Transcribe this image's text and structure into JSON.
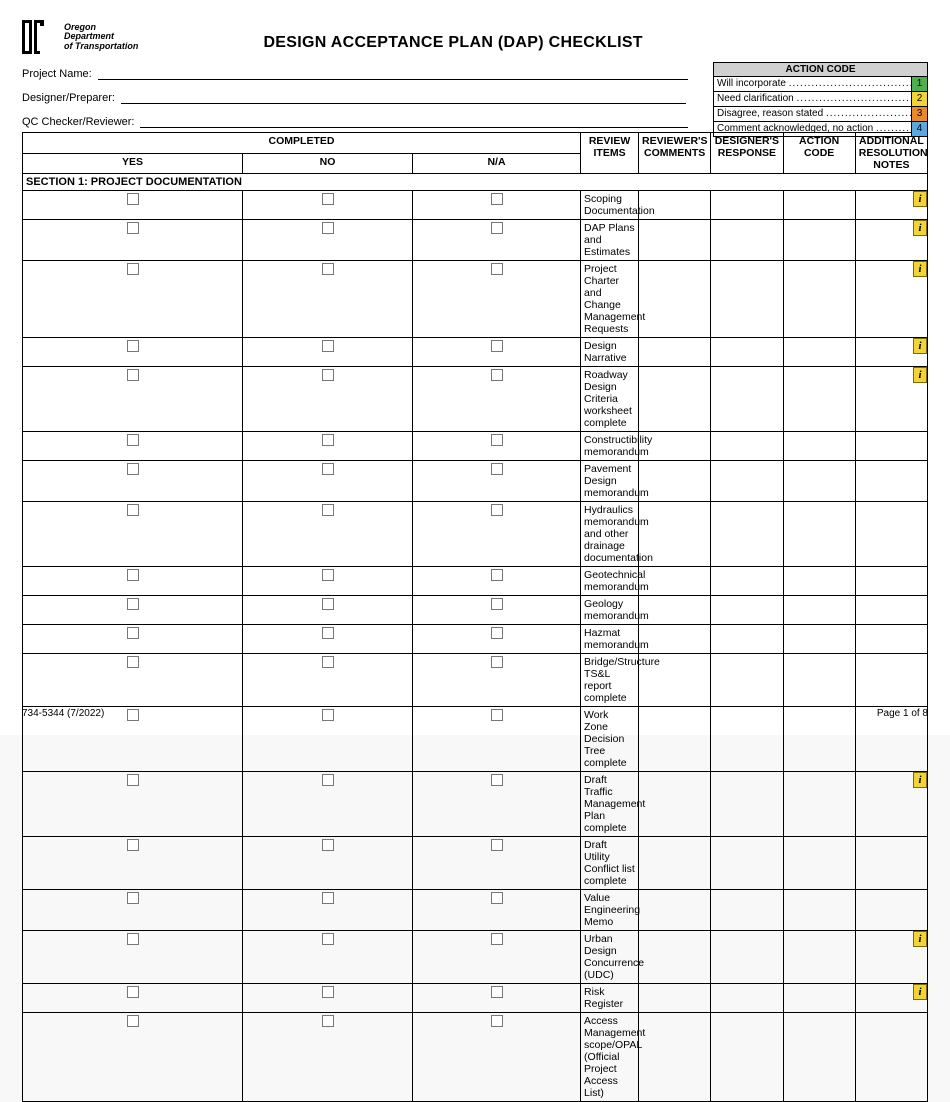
{
  "org": {
    "line1": "Oregon",
    "line2": "Department",
    "line3": "of Transportation"
  },
  "title": "DESIGN ACCEPTANCE PLAN (DAP) CHECKLIST",
  "meta": {
    "project_label": "Project Name:",
    "designer_label": "Designer/Preparer:",
    "qc_label": "QC Checker/Reviewer:"
  },
  "action_code": {
    "title": "ACTION CODE",
    "rows": [
      {
        "label": "Will incorporate",
        "num": "1",
        "color": "#4fae4f"
      },
      {
        "label": "Need clarification",
        "num": "2",
        "color": "#f3d335"
      },
      {
        "label": "Disagree, reason stated",
        "num": "3",
        "color": "#e88a2a"
      },
      {
        "label": "Comment acknowledged, no action",
        "num": "4",
        "color": "#5aa8e0"
      }
    ]
  },
  "headers": {
    "completed": "COMPLETED",
    "yes": "YES",
    "no": "NO",
    "na": "N/A",
    "review_items": "REVIEW\nITEMS",
    "reviewers_comments": "REVIEWER'S\nCOMMENTS",
    "designers_response": "DESIGNER'S\nRESPONSE",
    "action_code": "ACTION\nCODE",
    "notes": "ADDITIONAL RESOLUTION\nNOTES"
  },
  "section_title": "SECTION 1: PROJECT DOCUMENTATION",
  "rows": [
    {
      "item": "Scoping Documentation",
      "info": true
    },
    {
      "item": "DAP Plans and Estimates",
      "info": true
    },
    {
      "item": "Project Charter and Change Management Requests",
      "info": true
    },
    {
      "item": "Design Narrative",
      "info": true
    },
    {
      "item": "Roadway Design Criteria worksheet complete",
      "info": true
    },
    {
      "item": "Constructibility memorandum",
      "info": false
    },
    {
      "item": "Pavement Design memorandum",
      "info": false
    },
    {
      "item": "Hydraulics memorandum and other drainage documentation",
      "info": false
    },
    {
      "item": "Geotechnical memorandum",
      "info": false
    },
    {
      "item": "Geology memorandum",
      "info": false
    },
    {
      "item": "Hazmat memorandum",
      "info": false
    },
    {
      "item": "Bridge/Structure TS&L report complete",
      "info": false
    },
    {
      "item": "Work Zone Decision Tree complete",
      "info": false
    },
    {
      "item": "Draft Traffic Management Plan complete",
      "info": true
    },
    {
      "item": "Draft Utility Conflict list complete",
      "info": false
    },
    {
      "item": "Value Engineering Memo",
      "info": false
    },
    {
      "item": "Urban Design Concurrence (UDC)",
      "info": true
    },
    {
      "item": "Risk Register",
      "info": true
    },
    {
      "item": "Access Management scope/OPAL (Official Project Access List)",
      "info": false
    }
  ],
  "footer": {
    "form": "734-5344 (7/2022)",
    "page": "Page 1 of 8"
  }
}
